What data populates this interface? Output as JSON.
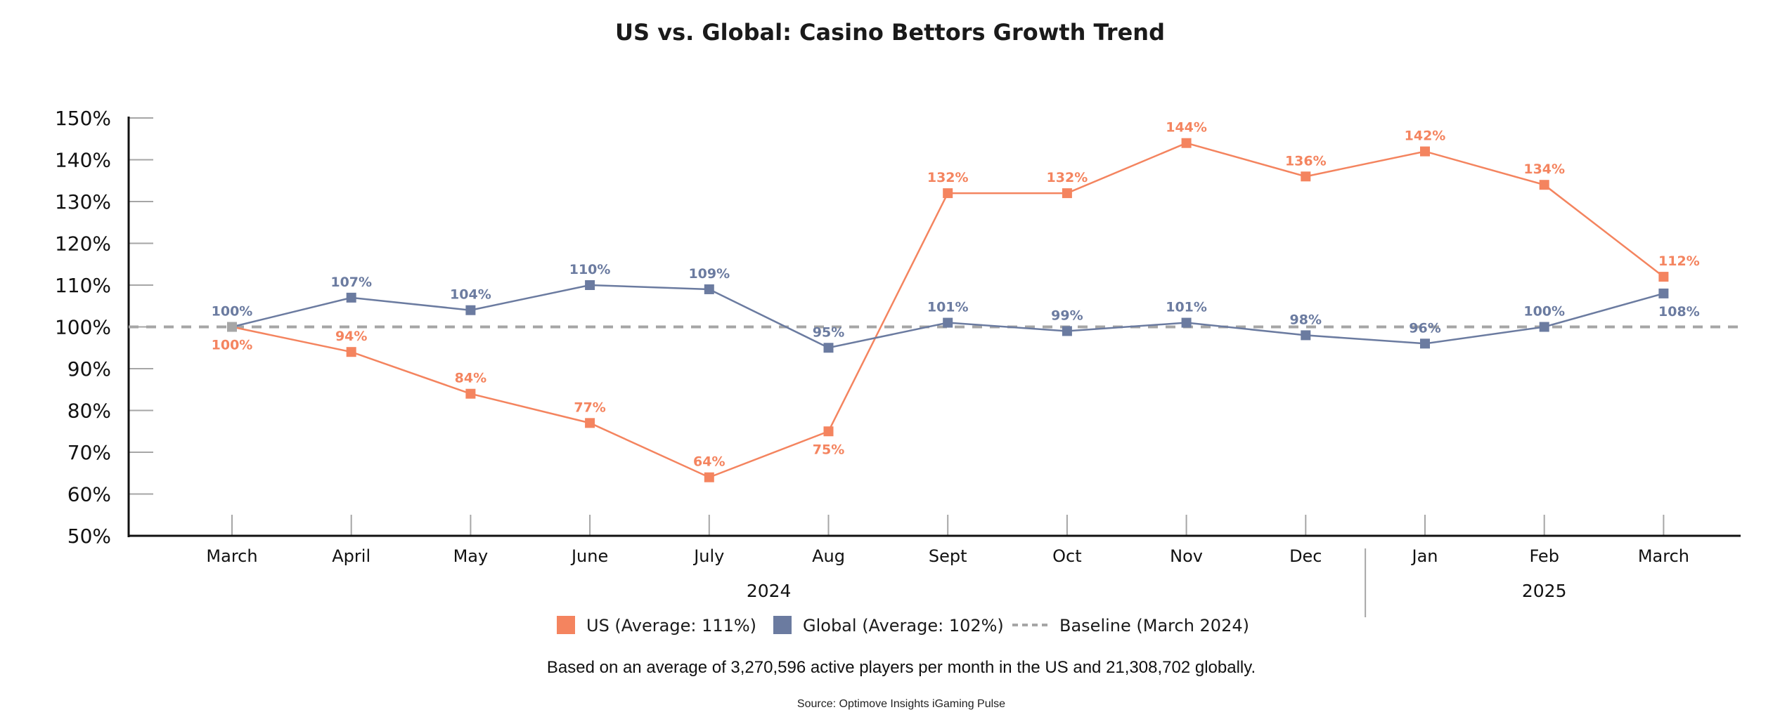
{
  "chart_data": {
    "type": "line",
    "title": "US vs. Global: Casino Bettors Growth Trend",
    "xlabel": "",
    "ylabel": "",
    "ylim": [
      50,
      150
    ],
    "yticks": [
      50,
      60,
      70,
      80,
      90,
      100,
      110,
      120,
      130,
      140,
      150
    ],
    "ytick_labels": [
      "50%",
      "60%",
      "70%",
      "80%",
      "90%",
      "100%",
      "110%",
      "120%",
      "130%",
      "140%",
      "150%"
    ],
    "categories": [
      "March",
      "April",
      "May",
      "June",
      "July",
      "Aug",
      "Sept",
      "Oct",
      "Nov",
      "Dec",
      "Jan",
      "Feb",
      "March"
    ],
    "year_groups": [
      {
        "label": "2024",
        "start_index": 0,
        "end_index": 9
      },
      {
        "label": "2025",
        "start_index": 10,
        "end_index": 12
      }
    ],
    "series": [
      {
        "name": "US",
        "legend_label": "US (Average: 111%)",
        "color": "#F4845F",
        "values": [
          100,
          94,
          84,
          77,
          64,
          75,
          132,
          132,
          144,
          136,
          142,
          134,
          112
        ],
        "labels": [
          "100%",
          "94%",
          "84%",
          "77%",
          "64%",
          "75%",
          "132%",
          "132%",
          "144%",
          "136%",
          "142%",
          "134%",
          "112%"
        ],
        "label_positions": [
          "below",
          "above",
          "above",
          "above",
          "above",
          "below",
          "above",
          "above",
          "above",
          "above",
          "above",
          "above",
          "above"
        ]
      },
      {
        "name": "Global",
        "legend_label": "Global (Average: 102%)",
        "color": "#6B7BA0",
        "values": [
          100,
          107,
          104,
          110,
          109,
          95,
          101,
          99,
          101,
          98,
          96,
          100,
          108
        ],
        "labels": [
          "100%",
          "107%",
          "104%",
          "110%",
          "109%",
          "95%",
          "101%",
          "99%",
          "101%",
          "98%",
          "96%",
          "100%",
          "108%"
        ],
        "label_positions": [
          "above",
          "above",
          "above",
          "above",
          "above",
          "above",
          "above",
          "above",
          "above",
          "above",
          "above",
          "above",
          "below"
        ]
      }
    ],
    "baseline": {
      "value": 100,
      "legend_label": "Baseline (March 2024)",
      "color": "#A6A6A6",
      "style": "dashed"
    },
    "first_point_color": "#A6A6A6",
    "grid": false,
    "legend_position": "bottom-center"
  },
  "footnote": "Based on an average of 3,270,596 active players per month in the US and 21,308,702 globally.",
  "source": "Source: Optimove Insights iGaming Pulse"
}
